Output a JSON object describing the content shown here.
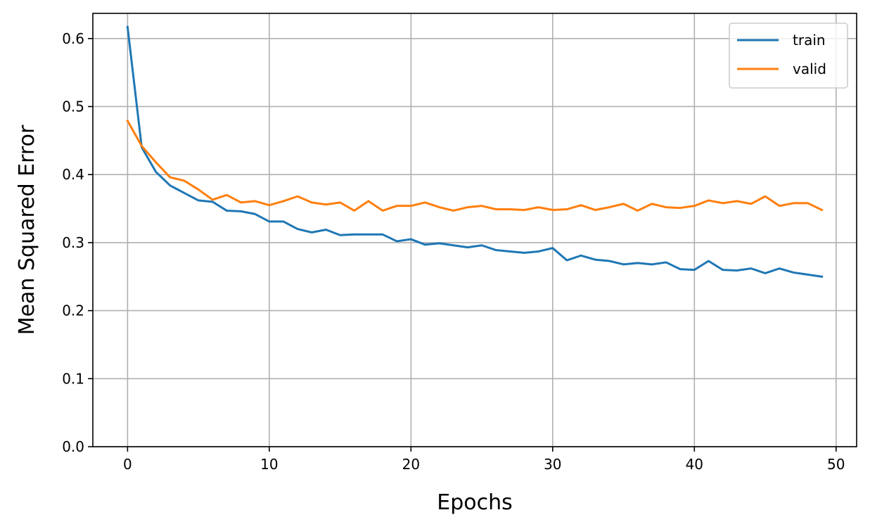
{
  "chart_data": {
    "type": "line",
    "title": "",
    "xlabel": "Epochs",
    "ylabel": "Mean Squared Error",
    "xlim": [
      -2.45,
      51.45
    ],
    "ylim": [
      0.0,
      0.637
    ],
    "xticks": [
      0,
      10,
      20,
      30,
      40,
      50
    ],
    "xtick_labels": [
      "0",
      "10",
      "20",
      "30",
      "40",
      "50"
    ],
    "yticks": [
      0.0,
      0.1,
      0.2,
      0.3,
      0.4,
      0.5,
      0.6
    ],
    "ytick_labels": [
      "0.0",
      "0.1",
      "0.2",
      "0.3",
      "0.4",
      "0.5",
      "0.6"
    ],
    "grid": true,
    "legend_position": "top-right",
    "x": [
      0,
      1,
      2,
      3,
      4,
      5,
      6,
      7,
      8,
      9,
      10,
      11,
      12,
      13,
      14,
      15,
      16,
      17,
      18,
      19,
      20,
      21,
      22,
      23,
      24,
      25,
      26,
      27,
      28,
      29,
      30,
      31,
      32,
      33,
      34,
      35,
      36,
      37,
      38,
      39,
      40,
      41,
      42,
      43,
      44,
      45,
      46,
      47,
      48,
      49
    ],
    "series": [
      {
        "name": "train",
        "color": "#1f77b4",
        "values": [
          0.617,
          0.44,
          0.404,
          0.384,
          0.373,
          0.362,
          0.36,
          0.347,
          0.346,
          0.342,
          0.331,
          0.331,
          0.32,
          0.315,
          0.319,
          0.311,
          0.312,
          0.312,
          0.312,
          0.302,
          0.305,
          0.297,
          0.299,
          0.296,
          0.293,
          0.296,
          0.289,
          0.287,
          0.285,
          0.287,
          0.292,
          0.274,
          0.281,
          0.275,
          0.273,
          0.268,
          0.27,
          0.268,
          0.271,
          0.261,
          0.26,
          0.273,
          0.26,
          0.259,
          0.262,
          0.255,
          0.262,
          0.256,
          0.253,
          0.25
        ]
      },
      {
        "name": "valid",
        "color": "#ff7f0e",
        "values": [
          0.479,
          0.442,
          0.418,
          0.396,
          0.391,
          0.378,
          0.363,
          0.37,
          0.359,
          0.361,
          0.355,
          0.361,
          0.368,
          0.359,
          0.356,
          0.359,
          0.347,
          0.361,
          0.347,
          0.354,
          0.354,
          0.359,
          0.352,
          0.347,
          0.352,
          0.354,
          0.349,
          0.349,
          0.348,
          0.352,
          0.348,
          0.349,
          0.355,
          0.348,
          0.352,
          0.357,
          0.347,
          0.357,
          0.352,
          0.351,
          0.354,
          0.362,
          0.358,
          0.361,
          0.357,
          0.368,
          0.354,
          0.358,
          0.358,
          0.348
        ]
      }
    ]
  }
}
